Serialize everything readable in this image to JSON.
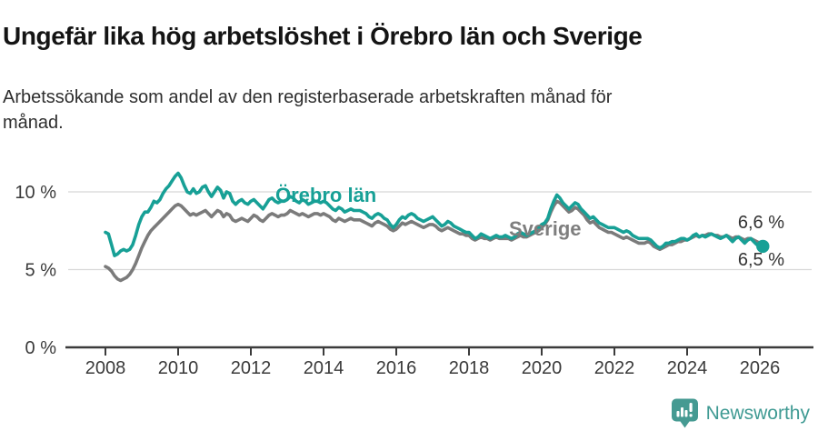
{
  "header": {
    "title": "Ungefär lika hög arbetslöshet i Örebro län och Sverige",
    "subtitle": "Arbetssökande som andel av den registerbaserade arbetskraften månad för månad."
  },
  "chart_data": {
    "type": "line",
    "title": "Ungefär lika hög arbetslöshet i Örebro län och Sverige",
    "subtitle": "Arbetssökande som andel av den registerbaserade arbetskraften månad för månad.",
    "unit": "%",
    "x_start": "2008-01",
    "x_interval": "month",
    "x_end": "2026-02",
    "x_tick_years": [
      2008,
      2010,
      2012,
      2014,
      2016,
      2018,
      2020,
      2022,
      2024,
      2026
    ],
    "y_ticks": [
      {
        "value": 0,
        "label": "0 %"
      },
      {
        "value": 5,
        "label": "5 %"
      },
      {
        "value": 10,
        "label": "10 %"
      }
    ],
    "ylim": [
      0,
      12
    ],
    "grid": "horizontal",
    "legend_position": "inline-labels",
    "series": [
      {
        "id": "sverige",
        "name": "Sverige",
        "color": "#7b7b7b",
        "end_label": "6,6 %",
        "marker_end": false,
        "values": [
          5.2,
          5.1,
          4.9,
          4.6,
          4.4,
          4.3,
          4.4,
          4.5,
          4.7,
          5.0,
          5.4,
          5.9,
          6.4,
          6.8,
          7.2,
          7.5,
          7.7,
          7.9,
          8.1,
          8.3,
          8.5,
          8.7,
          8.9,
          9.1,
          9.2,
          9.1,
          8.9,
          8.7,
          8.5,
          8.6,
          8.5,
          8.6,
          8.7,
          8.8,
          8.6,
          8.4,
          8.6,
          8.8,
          8.7,
          8.4,
          8.6,
          8.5,
          8.2,
          8.1,
          8.2,
          8.3,
          8.2,
          8.1,
          8.3,
          8.5,
          8.4,
          8.2,
          8.1,
          8.3,
          8.5,
          8.6,
          8.5,
          8.4,
          8.5,
          8.5,
          8.6,
          8.8,
          8.7,
          8.6,
          8.5,
          8.6,
          8.5,
          8.4,
          8.5,
          8.6,
          8.6,
          8.5,
          8.6,
          8.5,
          8.4,
          8.2,
          8.1,
          8.3,
          8.2,
          8.1,
          8.2,
          8.3,
          8.2,
          8.2,
          8.2,
          8.1,
          8.0,
          7.9,
          7.8,
          8.0,
          8.1,
          8.0,
          7.9,
          7.8,
          7.6,
          7.5,
          7.6,
          7.8,
          8.0,
          7.9,
          8.0,
          8.1,
          8.0,
          7.9,
          7.8,
          7.7,
          7.8,
          7.9,
          7.9,
          7.8,
          7.6,
          7.5,
          7.6,
          7.7,
          7.6,
          7.5,
          7.4,
          7.3,
          7.3,
          7.2,
          7.2,
          7.0,
          6.9,
          7.0,
          7.1,
          7.0,
          7.0,
          6.9,
          7.0,
          7.1,
          7.0,
          7.0,
          7.0,
          7.0,
          6.9,
          7.0,
          7.1,
          7.2,
          7.1,
          7.1,
          7.2,
          7.3,
          7.4,
          7.5,
          7.7,
          7.9,
          8.2,
          8.7,
          9.1,
          9.4,
          9.3,
          9.1,
          8.9,
          8.7,
          8.8,
          9.0,
          8.9,
          8.7,
          8.5,
          8.2,
          8.0,
          8.1,
          7.9,
          7.7,
          7.6,
          7.5,
          7.4,
          7.4,
          7.3,
          7.2,
          7.1,
          7.0,
          7.1,
          7.0,
          6.9,
          6.8,
          6.7,
          6.7,
          6.7,
          6.8,
          6.7,
          6.5,
          6.4,
          6.3,
          6.4,
          6.5,
          6.6,
          6.6,
          6.7,
          6.8,
          6.8,
          6.9,
          6.9,
          7.0,
          7.1,
          7.2,
          7.1,
          7.2,
          7.2,
          7.3,
          7.3,
          7.2,
          7.2,
          7.1,
          7.1,
          7.2,
          7.1,
          7.0,
          7.1,
          7.1,
          7.0,
          6.9,
          7.0,
          7.0,
          6.9,
          6.8,
          6.7,
          6.6
        ]
      },
      {
        "id": "orebro",
        "name": "Örebro län",
        "color": "#17a096",
        "end_label": "6,5 %",
        "marker_end": true,
        "values": [
          7.4,
          7.3,
          6.6,
          5.9,
          6.0,
          6.2,
          6.3,
          6.2,
          6.3,
          6.6,
          7.2,
          7.9,
          8.4,
          8.7,
          8.7,
          9.0,
          9.4,
          9.3,
          9.5,
          9.9,
          10.2,
          10.4,
          10.7,
          11.0,
          11.2,
          10.9,
          10.4,
          10.0,
          9.9,
          10.2,
          9.9,
          10.0,
          10.3,
          10.4,
          10.0,
          9.7,
          10.0,
          10.3,
          10.1,
          9.6,
          10.0,
          9.9,
          9.4,
          9.2,
          9.4,
          9.5,
          9.3,
          9.2,
          9.4,
          9.5,
          9.3,
          9.1,
          8.9,
          9.2,
          9.5,
          9.6,
          9.4,
          9.3,
          9.4,
          9.4,
          9.5,
          9.7,
          9.6,
          9.4,
          9.3,
          9.5,
          9.4,
          9.2,
          9.3,
          9.4,
          9.4,
          9.3,
          9.4,
          9.3,
          9.1,
          8.9,
          8.8,
          9.0,
          8.9,
          8.7,
          8.8,
          8.9,
          8.8,
          8.8,
          8.8,
          8.7,
          8.6,
          8.4,
          8.3,
          8.5,
          8.6,
          8.5,
          8.3,
          8.2,
          7.9,
          7.7,
          7.9,
          8.2,
          8.4,
          8.3,
          8.5,
          8.6,
          8.5,
          8.3,
          8.2,
          8.1,
          8.2,
          8.3,
          8.4,
          8.2,
          8.0,
          7.8,
          7.9,
          8.1,
          8.0,
          7.8,
          7.7,
          7.6,
          7.5,
          7.4,
          7.4,
          7.2,
          7.0,
          7.1,
          7.3,
          7.2,
          7.1,
          7.0,
          7.1,
          7.2,
          7.1,
          7.1,
          7.2,
          7.1,
          7.0,
          7.1,
          7.3,
          7.4,
          7.3,
          7.2,
          7.3,
          7.4,
          7.5,
          7.7,
          7.9,
          8.0,
          8.3,
          8.9,
          9.4,
          9.8,
          9.6,
          9.3,
          9.1,
          8.9,
          9.1,
          9.3,
          9.2,
          8.9,
          8.7,
          8.5,
          8.3,
          8.4,
          8.2,
          8.0,
          7.9,
          7.8,
          7.7,
          7.7,
          7.7,
          7.6,
          7.5,
          7.4,
          7.5,
          7.4,
          7.2,
          7.1,
          7.0,
          7.0,
          7.0,
          7.0,
          6.9,
          6.7,
          6.5,
          6.4,
          6.5,
          6.7,
          6.7,
          6.8,
          6.8,
          6.9,
          7.0,
          7.0,
          6.9,
          7.0,
          7.2,
          7.3,
          7.1,
          7.2,
          7.1,
          7.2,
          7.3,
          7.2,
          7.1,
          7.0,
          7.1,
          7.2,
          7.0,
          6.8,
          7.0,
          7.1,
          6.9,
          6.7,
          6.9,
          7.0,
          6.8,
          6.6,
          6.7,
          6.5
        ]
      }
    ],
    "colors": {
      "accent": "#17a096",
      "secondary": "#7b7b7b",
      "brand": "#3f9a93"
    }
  },
  "footer": {
    "brand": "Newsworthy"
  }
}
